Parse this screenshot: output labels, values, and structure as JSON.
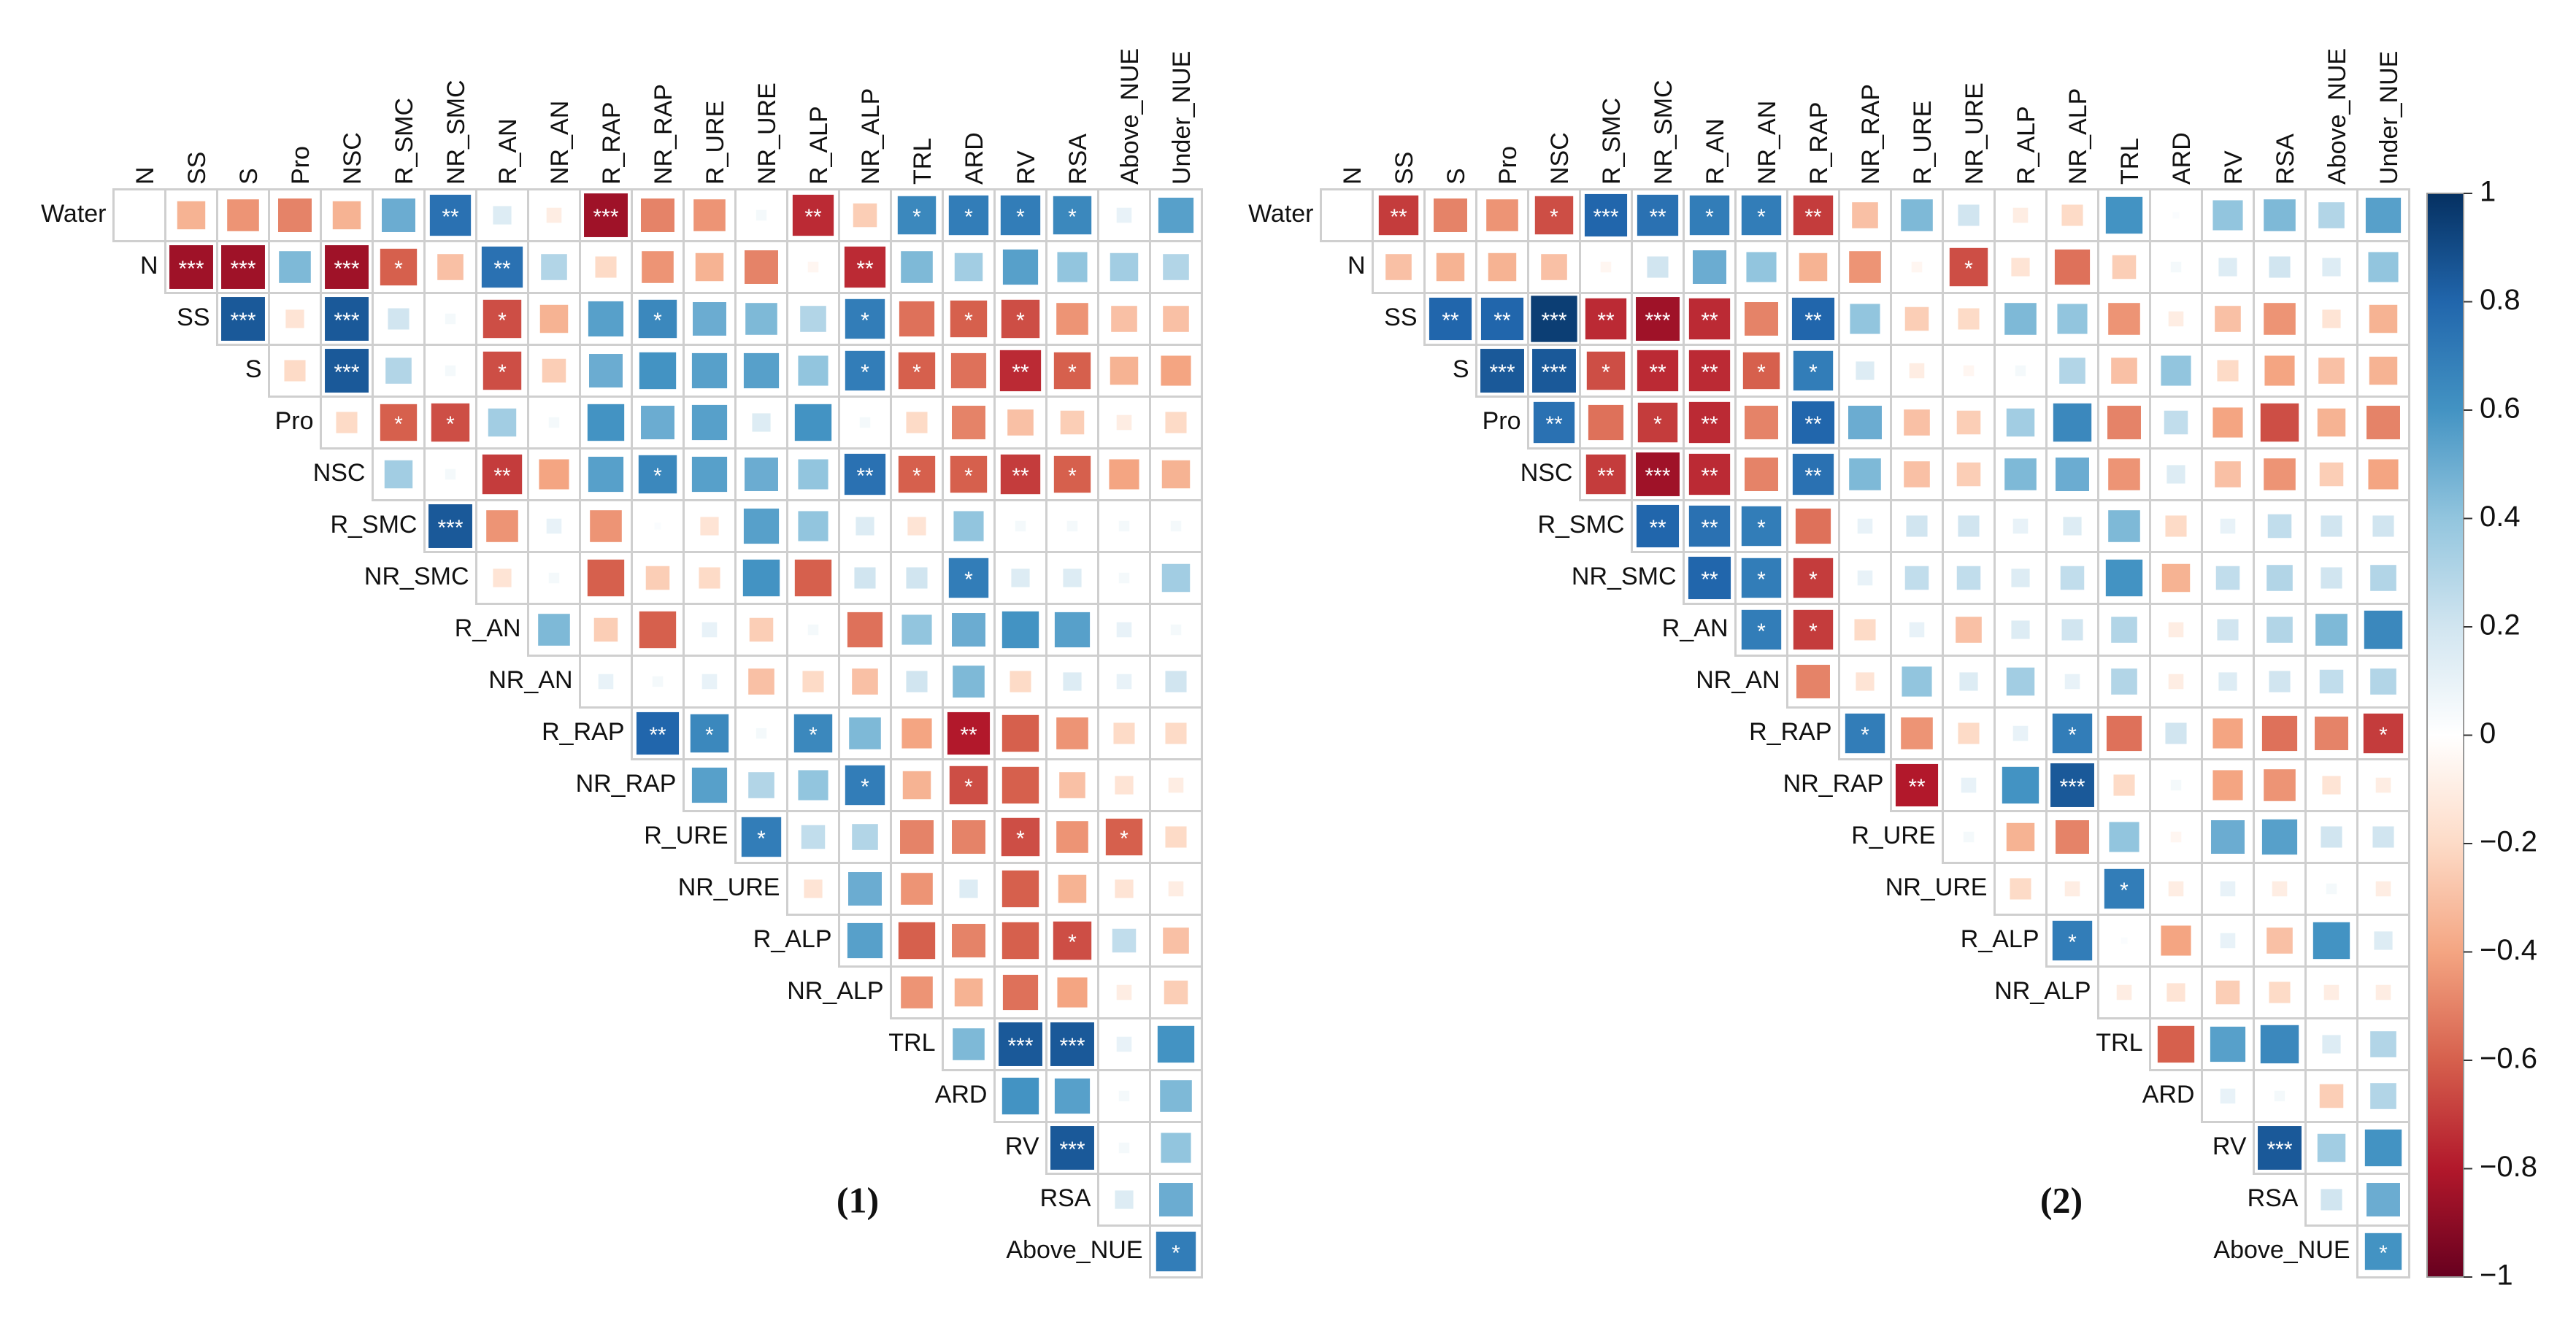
{
  "chart_data": [
    {
      "type": "corrplot",
      "title": "(1)",
      "columns": [
        "N",
        "SS",
        "S",
        "Pro",
        "NSC",
        "R_SMC",
        "NR_SMC",
        "R_AN",
        "NR_AN",
        "R_RAP",
        "NR_RAP",
        "R_URE",
        "NR_URE",
        "R_ALP",
        "NR_ALP",
        "TRL",
        "ARD",
        "RV",
        "RSA",
        "Above_NUE",
        "Under_NUE"
      ],
      "rows": [
        "Water",
        "N",
        "SS",
        "S",
        "Pro",
        "NSC",
        "R_SMC",
        "NR_SMC",
        "R_AN",
        "NR_AN",
        "R_RAP",
        "NR_RAP",
        "R_URE",
        "NR_URE",
        "R_ALP",
        "NR_ALP",
        "TRL",
        "ARD",
        "RV",
        "RSA",
        "Above_NUE"
      ],
      "values": [
        [
          0,
          -0.35,
          -0.45,
          -0.5,
          -0.35,
          0.5,
          0.75,
          0.15,
          -0.1,
          -0.85,
          -0.5,
          -0.45,
          0.05,
          -0.75,
          -0.25,
          0.65,
          0.7,
          0.7,
          0.65,
          0.1,
          0.55
        ],
        [
          -0.85,
          -0.85,
          0.45,
          -0.85,
          -0.6,
          -0.3,
          0.75,
          0.3,
          -0.2,
          -0.45,
          -0.35,
          -0.5,
          -0.05,
          -0.75,
          0.45,
          0.35,
          0.55,
          0.4,
          0.35,
          0.3
        ],
        [
          0.85,
          -0.15,
          0.85,
          0.2,
          0.05,
          -0.65,
          -0.35,
          0.55,
          0.65,
          0.5,
          0.45,
          0.3,
          0.7,
          -0.55,
          -0.6,
          -0.65,
          -0.45,
          -0.3,
          -0.3
        ],
        [
          -0.2,
          0.85,
          0.3,
          0.05,
          -0.65,
          -0.25,
          0.5,
          0.6,
          0.55,
          0.55,
          0.4,
          0.7,
          -0.6,
          -0.55,
          -0.75,
          -0.6,
          -0.35,
          -0.4
        ],
        [
          -0.2,
          -0.6,
          -0.65,
          0.35,
          0.05,
          0.6,
          0.5,
          0.55,
          0.15,
          0.6,
          0.05,
          -0.2,
          -0.5,
          -0.3,
          -0.25,
          -0.1,
          -0.2
        ],
        [
          0.35,
          0.05,
          -0.7,
          -0.4,
          0.55,
          0.65,
          0.55,
          0.5,
          0.4,
          0.75,
          -0.6,
          -0.6,
          -0.7,
          -0.6,
          -0.4,
          -0.35
        ],
        [
          0.85,
          -0.45,
          0.1,
          -0.45,
          0.02,
          -0.15,
          0.55,
          0.4,
          0.15,
          -0.15,
          0.4,
          0.05,
          0.05,
          0.05,
          0.05
        ],
        [
          -0.15,
          0.05,
          -0.6,
          -0.25,
          -0.2,
          0.6,
          -0.6,
          0.2,
          0.2,
          0.7,
          0.15,
          0.15,
          0.05,
          0.35
        ],
        [
          0.45,
          -0.25,
          -0.6,
          0.1,
          -0.25,
          0.05,
          -0.55,
          0.4,
          0.5,
          0.6,
          0.55,
          0.1,
          0.05
        ],
        [
          0.1,
          0.05,
          0.1,
          -0.3,
          -0.2,
          -0.3,
          0.2,
          0.45,
          -0.2,
          0.15,
          0.1,
          0.2
        ],
        [
          0.8,
          0.65,
          0.05,
          0.65,
          0.45,
          -0.4,
          -0.8,
          -0.6,
          -0.45,
          -0.2,
          -0.2
        ],
        [
          0.55,
          0.3,
          0.4,
          0.7,
          -0.35,
          -0.65,
          -0.6,
          -0.3,
          -0.15,
          -0.1
        ],
        [
          0.7,
          0.25,
          0.3,
          -0.5,
          -0.5,
          -0.65,
          -0.45,
          -0.6,
          -0.2
        ],
        [
          -0.15,
          0.5,
          -0.45,
          0.15,
          -0.6,
          -0.35,
          -0.15,
          -0.1
        ],
        [
          0.55,
          -0.6,
          -0.5,
          -0.6,
          -0.65,
          0.25,
          -0.3
        ],
        [
          -0.45,
          -0.35,
          -0.55,
          -0.4,
          -0.1,
          -0.25
        ],
        [
          0.45,
          0.85,
          0.85,
          0.1,
          0.6
        ],
        [
          0.6,
          0.55,
          0.05,
          0.45
        ],
        [
          0.85,
          0.05,
          0.4
        ],
        [
          0.15,
          0.5
        ],
        [
          0.7
        ]
      ],
      "stars": [
        [
          null,
          null,
          null,
          null,
          null,
          null,
          "**",
          null,
          null,
          "***",
          null,
          null,
          null,
          "**",
          null,
          "*",
          "*",
          "*",
          "*",
          null,
          null
        ],
        [
          "***",
          "***",
          null,
          "***",
          "*",
          null,
          "**",
          null,
          null,
          null,
          null,
          null,
          null,
          "**",
          null,
          null,
          null,
          null,
          null,
          null
        ],
        [
          "***",
          null,
          "***",
          null,
          null,
          "*",
          null,
          null,
          "*",
          null,
          null,
          null,
          "*",
          null,
          "*",
          "*",
          null,
          null,
          null
        ],
        [
          null,
          "***",
          null,
          null,
          "*",
          null,
          null,
          null,
          null,
          null,
          null,
          "*",
          "*",
          null,
          "**",
          "*",
          null,
          null
        ],
        [
          null,
          "*",
          "*",
          null,
          null,
          null,
          null,
          null,
          null,
          null,
          null,
          null,
          null,
          null,
          null,
          null,
          null
        ],
        [
          null,
          null,
          "**",
          null,
          null,
          "*",
          null,
          null,
          null,
          "**",
          "*",
          "*",
          "**",
          "*",
          null,
          null
        ],
        [
          "***",
          null,
          null,
          null,
          null,
          null,
          null,
          null,
          null,
          null,
          null,
          null,
          null,
          null,
          null
        ],
        [
          null,
          null,
          null,
          null,
          null,
          null,
          null,
          null,
          null,
          "*",
          null,
          null,
          null,
          null
        ],
        [
          null,
          null,
          null,
          null,
          null,
          null,
          null,
          null,
          null,
          null,
          null,
          null,
          null
        ],
        [
          null,
          null,
          null,
          null,
          null,
          null,
          null,
          null,
          null,
          null,
          null,
          null
        ],
        [
          "**",
          "*",
          null,
          "*",
          null,
          null,
          "**",
          null,
          null,
          null,
          null
        ],
        [
          null,
          null,
          null,
          "*",
          null,
          "*",
          null,
          null,
          null,
          null
        ],
        [
          "*",
          null,
          null,
          null,
          null,
          "*",
          null,
          "*",
          null
        ],
        [
          null,
          null,
          null,
          null,
          null,
          null,
          null,
          null
        ],
        [
          null,
          null,
          null,
          null,
          "*",
          null,
          null
        ],
        [
          null,
          null,
          null,
          null,
          null,
          null
        ],
        [
          null,
          "***",
          "***",
          null,
          null
        ],
        [
          null,
          null,
          null,
          null
        ],
        [
          "***",
          null,
          null
        ],
        [
          null,
          null
        ],
        [
          "*"
        ]
      ]
    },
    {
      "type": "corrplot",
      "title": "(2)",
      "columns": [
        "N",
        "SS",
        "S",
        "Pro",
        "NSC",
        "R_SMC",
        "NR_SMC",
        "R_AN",
        "NR_AN",
        "R_RAP",
        "NR_RAP",
        "R_URE",
        "NR_URE",
        "R_ALP",
        "NR_ALP",
        "TRL",
        "ARD",
        "RV",
        "RSA",
        "Above_NUE",
        "Under_NUE"
      ],
      "rows": [
        "Water",
        "N",
        "SS",
        "S",
        "Pro",
        "NSC",
        "R_SMC",
        "NR_SMC",
        "R_AN",
        "NR_AN",
        "R_RAP",
        "NR_RAP",
        "R_URE",
        "NR_URE",
        "R_ALP",
        "NR_ALP",
        "TRL",
        "ARD",
        "RV",
        "RSA",
        "Above_NUE"
      ],
      "values": [
        [
          0,
          -0.7,
          -0.5,
          -0.45,
          -0.65,
          0.8,
          0.75,
          0.7,
          0.7,
          -0.7,
          -0.3,
          0.45,
          0.2,
          -0.1,
          -0.2,
          0.6,
          0.02,
          0.4,
          0.45,
          0.3,
          0.55
        ],
        [
          -0.3,
          -0.35,
          -0.35,
          -0.3,
          -0.05,
          0.2,
          0.5,
          0.4,
          -0.35,
          -0.45,
          -0.05,
          -0.65,
          -0.15,
          -0.55,
          -0.25,
          0.05,
          0.15,
          0.2,
          0.15,
          0.4
        ],
        [
          0.8,
          0.8,
          0.95,
          -0.75,
          -0.85,
          -0.75,
          -0.5,
          0.8,
          0.4,
          -0.25,
          -0.2,
          0.45,
          0.4,
          -0.45,
          -0.1,
          -0.3,
          -0.45,
          -0.15,
          -0.35
        ],
        [
          0.85,
          0.85,
          -0.65,
          -0.75,
          -0.75,
          -0.6,
          0.7,
          0.15,
          -0.1,
          -0.05,
          0.05,
          0.3,
          -0.3,
          0.4,
          -0.2,
          -0.4,
          -0.3,
          -0.35
        ],
        [
          0.75,
          -0.55,
          -0.7,
          -0.75,
          -0.5,
          0.8,
          0.5,
          -0.3,
          -0.25,
          0.35,
          0.65,
          -0.5,
          0.25,
          -0.4,
          -0.65,
          -0.35,
          -0.5
        ],
        [
          -0.7,
          -0.85,
          -0.75,
          -0.5,
          0.75,
          0.45,
          -0.3,
          -0.25,
          0.45,
          0.5,
          -0.45,
          0.15,
          -0.3,
          -0.45,
          -0.25,
          -0.4
        ],
        [
          0.8,
          0.75,
          0.7,
          -0.55,
          0.1,
          0.2,
          0.2,
          0.1,
          0.15,
          0.45,
          -0.2,
          0.1,
          0.25,
          0.2,
          0.2
        ],
        [
          0.8,
          0.7,
          -0.7,
          0.1,
          0.25,
          0.25,
          0.15,
          0.25,
          0.6,
          -0.35,
          0.25,
          0.3,
          0.2,
          0.3
        ],
        [
          0.7,
          -0.7,
          -0.2,
          0.1,
          -0.3,
          0.15,
          0.2,
          0.3,
          -0.1,
          0.2,
          0.3,
          0.45,
          0.65
        ],
        [
          -0.5,
          -0.15,
          0.4,
          0.15,
          0.35,
          0.1,
          0.3,
          -0.1,
          0.15,
          0.2,
          0.25,
          0.3
        ],
        [
          0.7,
          -0.45,
          -0.2,
          0.1,
          0.7,
          -0.55,
          0.2,
          -0.4,
          -0.55,
          -0.5,
          -0.7
        ],
        [
          -0.8,
          0.1,
          0.6,
          0.85,
          -0.2,
          0.05,
          -0.4,
          -0.45,
          -0.15,
          -0.1
        ],
        [
          0.05,
          -0.35,
          -0.5,
          0.4,
          -0.05,
          0.5,
          0.55,
          0.2,
          0.2
        ],
        [
          -0.2,
          -0.1,
          0.7,
          -0.1,
          0.1,
          -0.1,
          0.05,
          -0.1
        ],
        [
          0.7,
          0.02,
          -0.4,
          0.1,
          -0.3,
          0.6,
          0.15
        ],
        [
          -0.1,
          -0.15,
          -0.25,
          -0.2,
          -0.1,
          -0.1
        ],
        [
          -0.6,
          0.55,
          0.65,
          0.15,
          0.3
        ],
        [
          0.1,
          0.05,
          -0.25,
          0.3
        ],
        [
          0.85,
          0.35,
          0.6
        ],
        [
          0.2,
          0.5
        ],
        [
          0.6
        ]
      ],
      "stars": [
        [
          null,
          "**",
          null,
          null,
          "*",
          "***",
          "**",
          "*",
          "*",
          "**",
          null,
          null,
          null,
          null,
          null,
          null,
          null,
          null,
          null,
          null,
          null
        ],
        [
          null,
          null,
          null,
          null,
          null,
          null,
          null,
          null,
          null,
          null,
          null,
          "*",
          null,
          null,
          null,
          null,
          null,
          null,
          null,
          null
        ],
        [
          "**",
          "**",
          "***",
          "**",
          "***",
          "**",
          null,
          "**",
          null,
          null,
          null,
          null,
          null,
          null,
          null,
          null,
          null,
          null,
          null
        ],
        [
          "***",
          "***",
          "*",
          "**",
          "**",
          "*",
          "*",
          null,
          null,
          null,
          null,
          null,
          null,
          null,
          null,
          null,
          null,
          null
        ],
        [
          "**",
          null,
          "*",
          "**",
          null,
          "**",
          null,
          null,
          null,
          null,
          null,
          null,
          null,
          null,
          null,
          null,
          null
        ],
        [
          "**",
          "***",
          "**",
          null,
          "**",
          null,
          null,
          null,
          null,
          null,
          null,
          null,
          null,
          null,
          null,
          null
        ],
        [
          "**",
          "**",
          "*",
          null,
          null,
          null,
          null,
          null,
          null,
          null,
          null,
          null,
          null,
          null,
          null
        ],
        [
          "**",
          "*",
          "*",
          null,
          null,
          null,
          null,
          null,
          null,
          null,
          null,
          null,
          null,
          null
        ],
        [
          "*",
          "*",
          null,
          null,
          null,
          null,
          null,
          null,
          null,
          null,
          null,
          null,
          null
        ],
        [
          null,
          null,
          null,
          null,
          null,
          null,
          null,
          null,
          null,
          null,
          null,
          null
        ],
        [
          "*",
          null,
          null,
          null,
          "*",
          null,
          null,
          null,
          null,
          null,
          "*"
        ],
        [
          "**",
          null,
          null,
          "***",
          null,
          null,
          null,
          null,
          null,
          null
        ],
        [
          null,
          null,
          null,
          null,
          null,
          null,
          null,
          null,
          null
        ],
        [
          null,
          null,
          "*",
          null,
          null,
          null,
          null,
          null
        ],
        [
          "*",
          null,
          null,
          null,
          null,
          null,
          null
        ],
        [
          null,
          null,
          null,
          null,
          null,
          null
        ],
        [
          null,
          null,
          null,
          null,
          null
        ],
        [
          null,
          null,
          null,
          null
        ],
        [
          "***",
          null,
          null
        ],
        [
          null,
          null
        ],
        [
          "*"
        ]
      ]
    }
  ],
  "colorbar": {
    "lim": [
      -1,
      1
    ],
    "ticks": [
      1,
      0.8,
      0.6,
      0.4,
      0.2,
      0,
      {
        "value": -0.2,
        "label": "−0.2"
      },
      {
        "value": -0.4,
        "label": "−0.4"
      },
      {
        "value": -0.6,
        "label": "−0.6"
      },
      {
        "value": -0.8,
        "label": "−0.8"
      },
      {
        "value": -1,
        "label": "−1"
      }
    ],
    "colors": [
      "#67001f",
      "#b2182b",
      "#d6604d",
      "#f4a582",
      "#fddbc7",
      "#ffffff",
      "#d1e5f0",
      "#92c5de",
      "#4393c3",
      "#2166ac",
      "#053061"
    ]
  }
}
